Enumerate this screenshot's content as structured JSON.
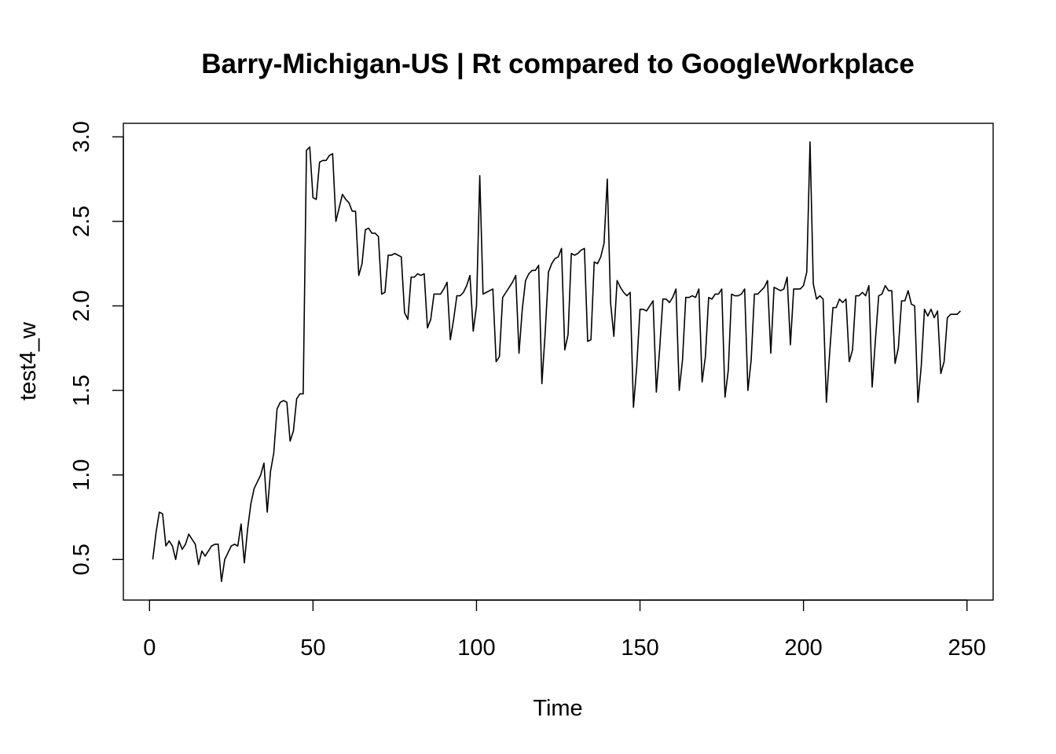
{
  "chart_data": {
    "type": "line",
    "title": "Barry-Michigan-US | Rt compared to GoogleWorkplace",
    "xlabel": "Time",
    "ylabel": "test4_w",
    "xlim": [
      -8,
      258
    ],
    "ylim": [
      0.26,
      3.08
    ],
    "x_ticks": [
      0,
      50,
      100,
      150,
      200,
      250
    ],
    "y_ticks": [
      0.5,
      1.0,
      1.5,
      2.0,
      2.5,
      3.0
    ],
    "x_tick_labels": [
      "0",
      "50",
      "100",
      "150",
      "200",
      "250"
    ],
    "y_tick_labels": [
      "0.5",
      "1.0",
      "1.5",
      "2.0",
      "2.5",
      "3.0"
    ],
    "grid": false,
    "legend": "none",
    "line_color": "#000000",
    "series": [
      {
        "x_start": 1,
        "values": [
          0.5,
          0.66,
          0.78,
          0.77,
          0.58,
          0.61,
          0.58,
          0.5,
          0.61,
          0.56,
          0.59,
          0.65,
          0.62,
          0.59,
          0.47,
          0.55,
          0.52,
          0.55,
          0.58,
          0.59,
          0.59,
          0.37,
          0.5,
          0.54,
          0.58,
          0.59,
          0.58,
          0.71,
          0.48,
          0.68,
          0.83,
          0.92,
          0.96,
          1.0,
          1.07,
          0.78,
          1.02,
          1.13,
          1.39,
          1.43,
          1.44,
          1.43,
          1.2,
          1.26,
          1.45,
          1.48,
          1.48,
          2.92,
          2.94,
          2.64,
          2.63,
          2.85,
          2.86,
          2.86,
          2.89,
          2.9,
          2.5,
          2.58,
          2.66,
          2.63,
          2.61,
          2.56,
          2.56,
          2.18,
          2.25,
          2.45,
          2.46,
          2.43,
          2.43,
          2.41,
          2.07,
          2.08,
          2.3,
          2.3,
          2.31,
          2.3,
          2.29,
          1.96,
          1.92,
          2.17,
          2.17,
          2.19,
          2.18,
          2.19,
          1.87,
          1.92,
          2.07,
          2.07,
          2.07,
          2.1,
          2.14,
          1.8,
          1.92,
          2.06,
          2.06,
          2.08,
          2.12,
          2.18,
          1.85,
          2.0,
          2.77,
          2.07,
          2.08,
          2.09,
          2.1,
          1.67,
          1.7,
          2.05,
          2.08,
          2.11,
          2.14,
          2.18,
          1.72,
          1.98,
          2.15,
          2.19,
          2.21,
          2.21,
          2.24,
          1.54,
          1.84,
          2.2,
          2.25,
          2.28,
          2.29,
          2.34,
          1.74,
          1.83,
          2.31,
          2.3,
          2.31,
          2.33,
          2.34,
          1.79,
          1.8,
          2.26,
          2.25,
          2.29,
          2.37,
          2.75,
          2.02,
          1.82,
          2.15,
          2.11,
          2.08,
          2.06,
          2.08,
          1.4,
          1.64,
          1.98,
          1.98,
          1.97,
          2.0,
          2.03,
          1.49,
          1.74,
          2.04,
          2.04,
          2.02,
          2.05,
          2.1,
          1.5,
          1.68,
          2.05,
          2.05,
          2.06,
          2.05,
          2.1,
          1.55,
          1.7,
          2.05,
          2.04,
          2.07,
          2.07,
          2.1,
          1.46,
          1.62,
          2.07,
          2.06,
          2.06,
          2.07,
          2.1,
          1.5,
          1.68,
          2.07,
          2.07,
          2.09,
          2.11,
          2.15,
          1.72,
          2.11,
          2.1,
          2.09,
          2.1,
          2.17,
          1.77,
          2.1,
          2.1,
          2.1,
          2.12,
          2.2,
          2.97,
          2.13,
          2.04,
          2.06,
          2.04,
          1.43,
          1.72,
          1.99,
          1.99,
          2.04,
          2.02,
          2.04,
          1.67,
          1.74,
          2.06,
          2.06,
          2.08,
          2.06,
          2.12,
          1.52,
          1.8,
          2.06,
          2.07,
          2.12,
          2.09,
          2.09,
          1.66,
          1.75,
          2.03,
          2.03,
          2.09,
          2.01,
          2.0,
          1.43,
          1.64,
          1.98,
          1.94,
          1.98,
          1.93,
          1.97,
          1.6,
          1.67,
          1.93,
          1.95,
          1.95,
          1.95,
          1.97
        ]
      }
    ]
  }
}
